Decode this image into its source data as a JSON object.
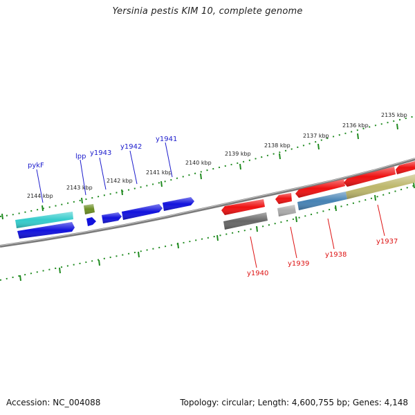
{
  "header": {
    "title": "Yersinia pestis KIM 10, complete genome"
  },
  "footer": {
    "accession": "Accession: NC_004088",
    "summary": "Topology: circular; Length: 4,600,755 bp; Genes: 4,148"
  },
  "colors": {
    "backbone": "#7a7a7a",
    "tick": "#1f8a1f",
    "forward_label": "#1a1acc",
    "reverse_label": "#dd1111"
  },
  "ticks": {
    "unit": "kbp",
    "labels": [
      "2135 kbp",
      "2136 kbp",
      "2137 kbp",
      "2138 kbp",
      "2139 kbp",
      "2140 kbp",
      "2141 kbp",
      "2142 kbp",
      "2143 kbp",
      "2144 kbp"
    ]
  },
  "genes": {
    "forward": [
      {
        "name": "pykF",
        "color": "#33cccc",
        "labeled": true
      },
      {
        "name": "",
        "color": "#1111dd",
        "labeled": false
      },
      {
        "name": "lpp",
        "color": "#6b8e23",
        "labeled": true
      },
      {
        "name": "",
        "color": "#1111dd",
        "labeled": false
      },
      {
        "name": "y1943",
        "color": "#1111dd",
        "labeled": true
      },
      {
        "name": "y1942",
        "color": "#1111dd",
        "labeled": true
      },
      {
        "name": "y1941",
        "color": "#1111dd",
        "labeled": true
      }
    ],
    "reverse": [
      {
        "name": "y1940",
        "color": "#ee1111",
        "labeled": true
      },
      {
        "name": "",
        "color": "#666666",
        "labeled": false
      },
      {
        "name": "y1939",
        "color": "#ee1111",
        "labeled": true
      },
      {
        "name": "",
        "color": "#aaaaaa",
        "labeled": false
      },
      {
        "name": "y1938",
        "color": "#4682b4",
        "labeled": true
      },
      {
        "name": "",
        "color": "#ee1111",
        "labeled": false
      },
      {
        "name": "y1937",
        "color": "#bdb76b",
        "labeled": true
      },
      {
        "name": "",
        "color": "#ee1111",
        "labeled": false
      },
      {
        "name": "",
        "color": "#ee1111",
        "labeled": false
      }
    ]
  }
}
